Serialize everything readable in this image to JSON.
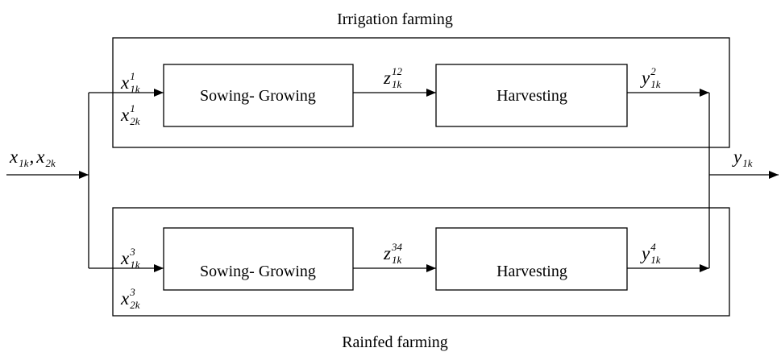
{
  "input": {
    "terms": [
      {
        "base": "x",
        "sub": "1k"
      },
      {
        "base": "x",
        "sub": "2k"
      }
    ],
    "separator": ","
  },
  "output": {
    "base": "y",
    "sub": "1k"
  },
  "groups": [
    {
      "title": "Irrigation farming",
      "blocks": [
        "Sowing- Growing",
        "Harvesting"
      ],
      "inputs": [
        {
          "base": "x",
          "sup": "1",
          "sub": "1k"
        },
        {
          "base": "x",
          "sup": "1",
          "sub": "2k"
        }
      ],
      "intermediate": {
        "base": "z",
        "sup": "12",
        "sub": "1k"
      },
      "output": {
        "base": "y",
        "sup": "2",
        "sub": "1k"
      }
    },
    {
      "title": "Rainfed farming",
      "blocks": [
        "Sowing- Growing",
        "Harvesting"
      ],
      "inputs": [
        {
          "base": "x",
          "sup": "3",
          "sub": "1k"
        },
        {
          "base": "x",
          "sup": "3",
          "sub": "2k"
        }
      ],
      "intermediate": {
        "base": "z",
        "sup": "34",
        "sub": "1k"
      },
      "output": {
        "base": "y",
        "sup": "4",
        "sub": "1k"
      }
    }
  ]
}
